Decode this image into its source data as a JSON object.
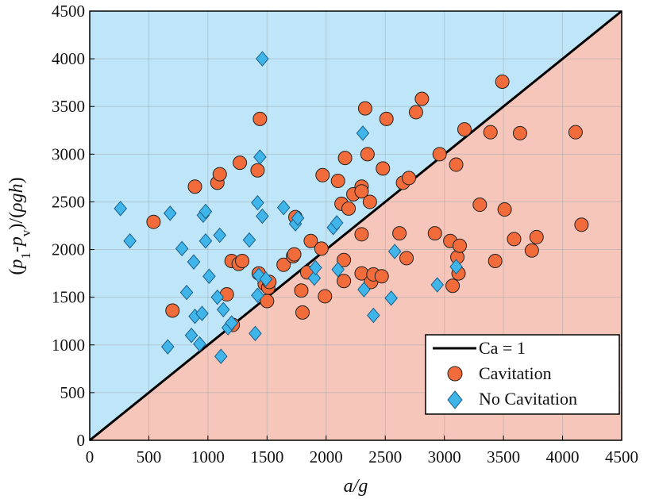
{
  "chart_data": {
    "type": "scatter",
    "title": "",
    "xlabel": "a/g",
    "ylabel_parts": {
      "open": "(",
      "p": "p",
      "sub1": "1",
      "dash": "-",
      "p2": "p",
      "subv": "v",
      "rest": ")/(",
      "rho": "ρ",
      "gh": "gh",
      "close": ")"
    },
    "xlim": [
      0,
      4500
    ],
    "ylim": [
      0,
      4500
    ],
    "xticks": [
      "0",
      "500",
      "1000",
      "1500",
      "2000",
      "2500",
      "3000",
      "3500",
      "4000",
      "4500"
    ],
    "yticks": [
      "0",
      "500",
      "1000",
      "1500",
      "2000",
      "2500",
      "3000",
      "3500",
      "4000",
      "4500"
    ],
    "grid": true,
    "legend_position": "bottom-right",
    "region_colors": {
      "above_line": "#bfe6f8",
      "below_line": "#f7c6ba"
    },
    "series": [
      {
        "name": "Ca = 1",
        "kind": "line",
        "color": "#000000",
        "x": [
          0,
          4500
        ],
        "y": [
          0,
          4500
        ]
      },
      {
        "name": "Cavitation",
        "kind": "circle",
        "color": "#f26b3a",
        "points": [
          [
            540,
            2290
          ],
          [
            700,
            1360
          ],
          [
            890,
            2660
          ],
          [
            1080,
            2700
          ],
          [
            1100,
            2790
          ],
          [
            1160,
            1530
          ],
          [
            1200,
            1880
          ],
          [
            1210,
            1210
          ],
          [
            1260,
            1850
          ],
          [
            1270,
            2910
          ],
          [
            1290,
            1880
          ],
          [
            1420,
            2830
          ],
          [
            1440,
            3370
          ],
          [
            1430,
            1750
          ],
          [
            1480,
            1640
          ],
          [
            1500,
            1460
          ],
          [
            1510,
            1600
          ],
          [
            1520,
            1660
          ],
          [
            1640,
            1840
          ],
          [
            1720,
            1930
          ],
          [
            1730,
            1950
          ],
          [
            1740,
            2340
          ],
          [
            1790,
            1570
          ],
          [
            1800,
            1340
          ],
          [
            1840,
            1760
          ],
          [
            1870,
            2090
          ],
          [
            1960,
            2010
          ],
          [
            1970,
            2780
          ],
          [
            1990,
            1510
          ],
          [
            2100,
            2720
          ],
          [
            2130,
            2480
          ],
          [
            2150,
            1890
          ],
          [
            2150,
            1670
          ],
          [
            2160,
            2960
          ],
          [
            2190,
            2430
          ],
          [
            2230,
            2580
          ],
          [
            2300,
            2660
          ],
          [
            2300,
            2610
          ],
          [
            2300,
            2160
          ],
          [
            2300,
            1750
          ],
          [
            2330,
            3480
          ],
          [
            2350,
            3000
          ],
          [
            2370,
            2500
          ],
          [
            2380,
            1660
          ],
          [
            2400,
            1740
          ],
          [
            2470,
            1720
          ],
          [
            2480,
            2850
          ],
          [
            2510,
            3370
          ],
          [
            2620,
            2170
          ],
          [
            2650,
            2700
          ],
          [
            2680,
            1910
          ],
          [
            2700,
            2750
          ],
          [
            2760,
            3440
          ],
          [
            2810,
            3580
          ],
          [
            2920,
            2170
          ],
          [
            2960,
            3000
          ],
          [
            3050,
            2090
          ],
          [
            3070,
            1620
          ],
          [
            3100,
            2890
          ],
          [
            3110,
            1920
          ],
          [
            3130,
            2040
          ],
          [
            3120,
            1750
          ],
          [
            3170,
            3260
          ],
          [
            3300,
            2470
          ],
          [
            3390,
            3230
          ],
          [
            3430,
            1880
          ],
          [
            3490,
            3760
          ],
          [
            3510,
            2420
          ],
          [
            3590,
            2110
          ],
          [
            3640,
            3220
          ],
          [
            3740,
            1990
          ],
          [
            3780,
            2130
          ],
          [
            4110,
            3230
          ],
          [
            4160,
            2260
          ]
        ]
      },
      {
        "name": "No Cavitation",
        "kind": "diamond",
        "color": "#3fb5ea",
        "points": [
          [
            260,
            2430
          ],
          [
            340,
            2090
          ],
          [
            660,
            980
          ],
          [
            680,
            2380
          ],
          [
            780,
            2010
          ],
          [
            820,
            1550
          ],
          [
            860,
            1100
          ],
          [
            880,
            1870
          ],
          [
            890,
            1300
          ],
          [
            930,
            1010
          ],
          [
            950,
            1330
          ],
          [
            960,
            2360
          ],
          [
            980,
            2090
          ],
          [
            980,
            2400
          ],
          [
            1010,
            1720
          ],
          [
            1080,
            1500
          ],
          [
            1100,
            2150
          ],
          [
            1110,
            880
          ],
          [
            1130,
            1370
          ],
          [
            1170,
            1180
          ],
          [
            1200,
            1230
          ],
          [
            1350,
            2100
          ],
          [
            1400,
            1120
          ],
          [
            1420,
            2490
          ],
          [
            1420,
            1520
          ],
          [
            1430,
            1730
          ],
          [
            1440,
            2970
          ],
          [
            1460,
            2350
          ],
          [
            1460,
            4000
          ],
          [
            1490,
            1690
          ],
          [
            1640,
            2440
          ],
          [
            1740,
            2270
          ],
          [
            1760,
            2330
          ],
          [
            1900,
            1700
          ],
          [
            1910,
            1810
          ],
          [
            2060,
            2230
          ],
          [
            2090,
            2280
          ],
          [
            2100,
            1790
          ],
          [
            2310,
            3220
          ],
          [
            2320,
            1580
          ],
          [
            2400,
            1310
          ],
          [
            2550,
            1490
          ],
          [
            2580,
            1980
          ],
          [
            2940,
            1630
          ],
          [
            3100,
            1820
          ]
        ]
      }
    ]
  }
}
